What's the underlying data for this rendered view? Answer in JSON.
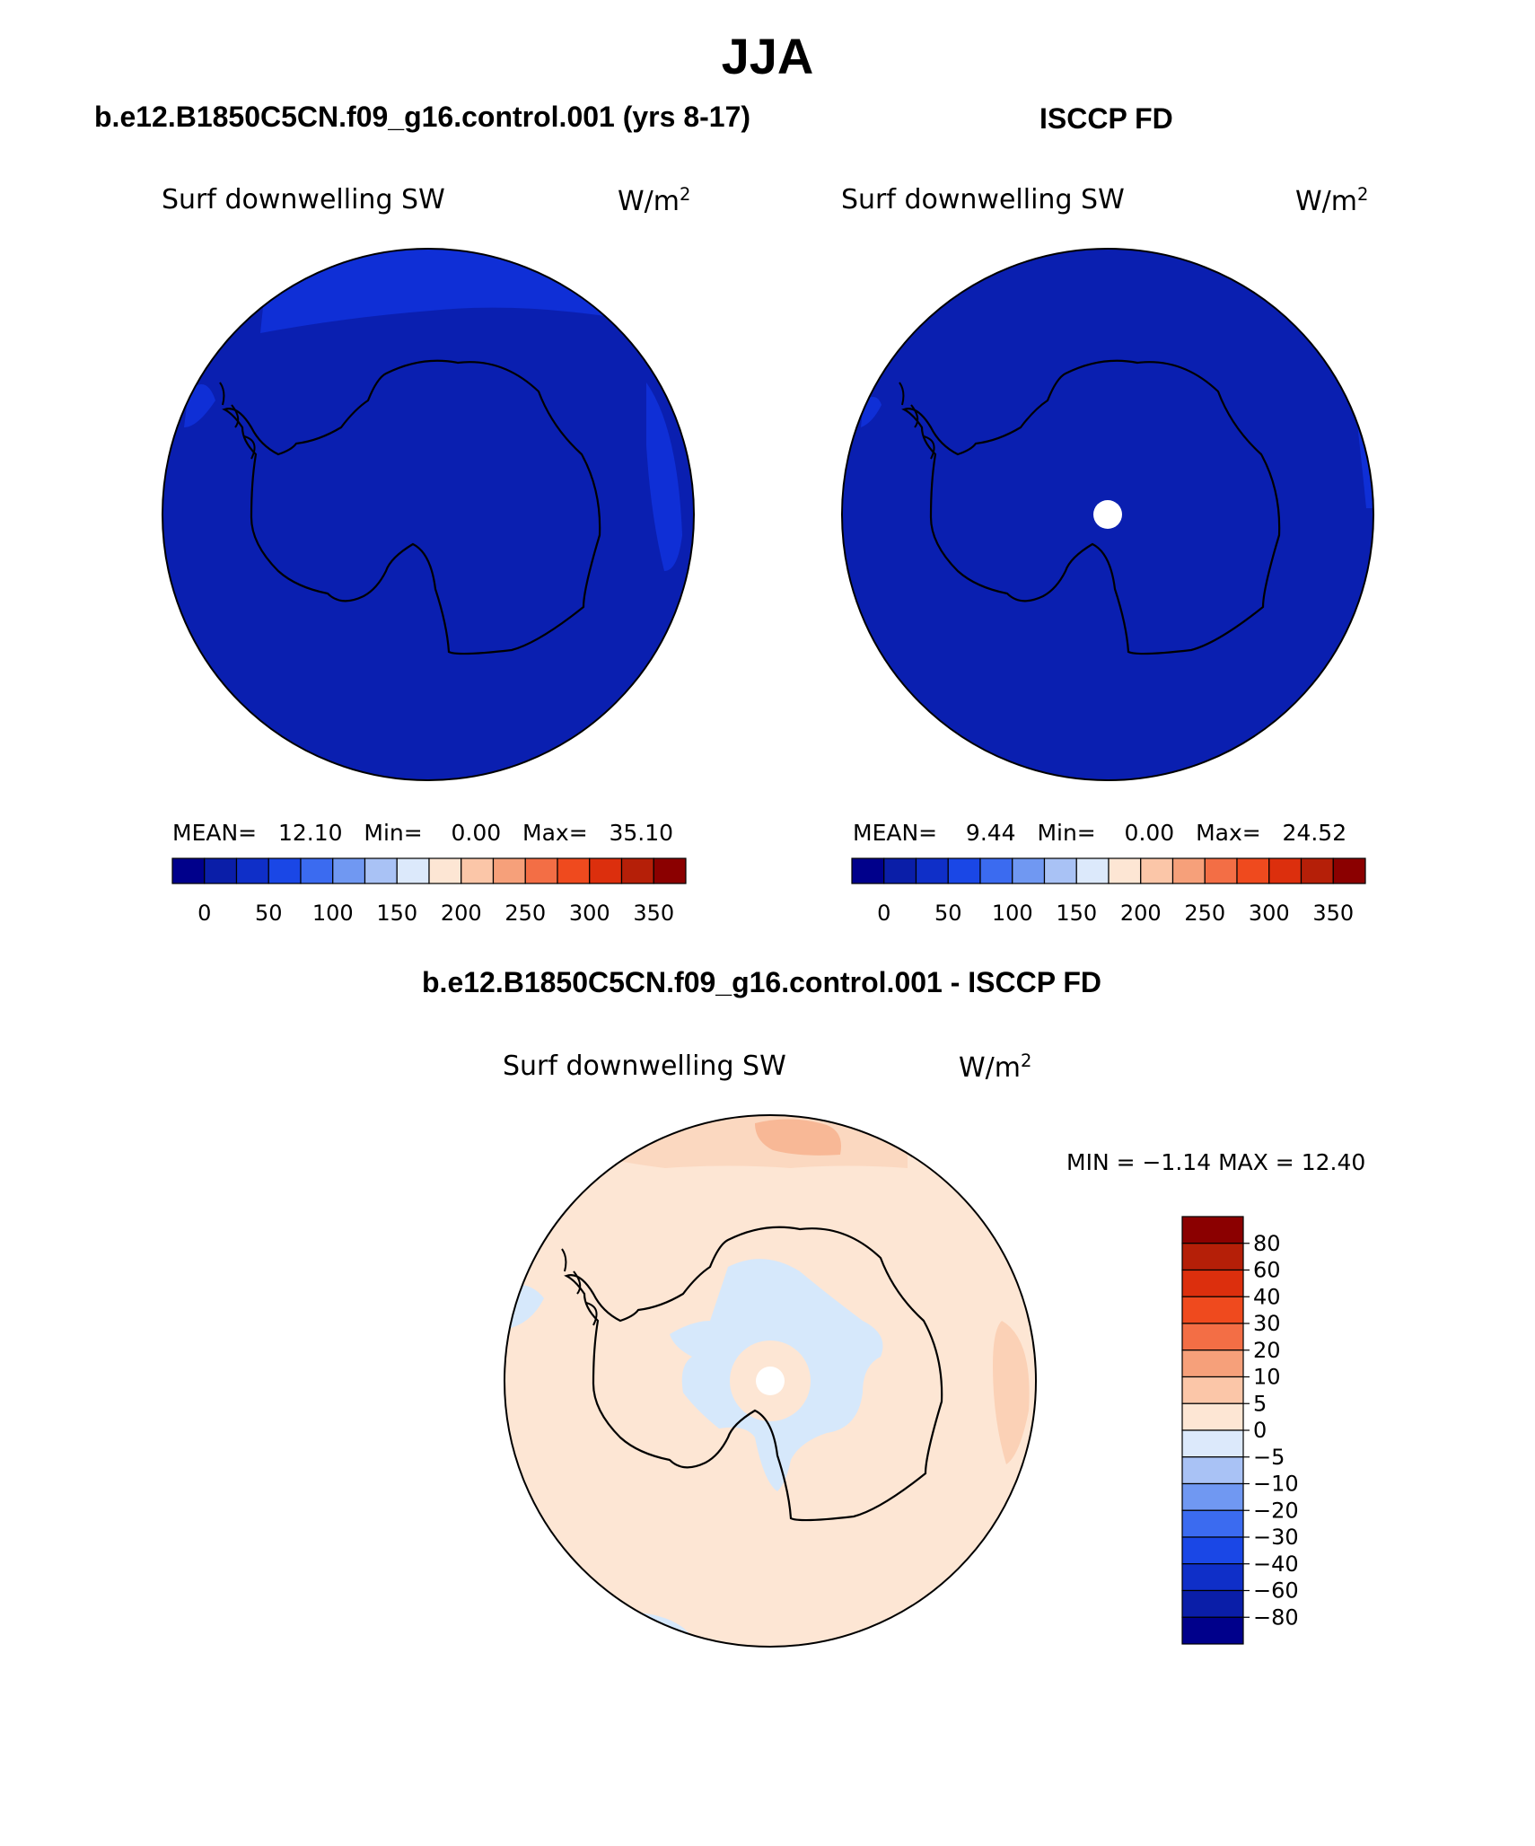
{
  "title": "JJA",
  "panels": {
    "model": {
      "title": "b.e12.B1850C5CN.f09_g16.control.001 (yrs 8-17)",
      "variable": "Surf downwelling SW",
      "units_base": "W/m",
      "units_exp": "2",
      "stats": {
        "mean_label": "MEAN=",
        "mean": "12.10",
        "min_label": "Min=",
        "min": "0.00",
        "max_label": "Max=",
        "max": "35.10"
      }
    },
    "obs": {
      "title": "ISCCP FD",
      "variable": "Surf downwelling SW",
      "units_base": "W/m",
      "units_exp": "2",
      "stats": {
        "mean_label": "MEAN=",
        "mean": "9.44",
        "min_label": "Min=",
        "min": "0.00",
        "max_label": "Max=",
        "max": "24.52"
      }
    },
    "diff": {
      "title": "b.e12.B1850C5CN.f09_g16.control.001 - ISCCP FD",
      "variable": "Surf downwelling SW",
      "units_base": "W/m",
      "units_exp": "2",
      "min_text": "MIN =  −1.14",
      "max_text": "MAX =   12.40"
    }
  },
  "colorbar_main": {
    "colors": [
      "#00008b",
      "#0a1ea8",
      "#0f2fc8",
      "#1a47e6",
      "#3b6bf0",
      "#7098f2",
      "#a9c2f5",
      "#dce9fb",
      "#fde6d4",
      "#fbc6a8",
      "#f6a07a",
      "#f36e45",
      "#ef4a1e",
      "#dc2f0d",
      "#b51f08",
      "#8b0000"
    ],
    "labels": [
      "0",
      "50",
      "100",
      "150",
      "200",
      "250",
      "300",
      "350"
    ]
  },
  "colorbar_diff": {
    "colors": [
      "#8b0000",
      "#b51f08",
      "#dc2f0d",
      "#ef4a1e",
      "#f36e45",
      "#f6a07a",
      "#fbc6a8",
      "#fde6d4",
      "#dce9fb",
      "#a9c2f5",
      "#7098f2",
      "#3b6bf0",
      "#1a47e6",
      "#0f2fc8",
      "#0a1ea8",
      "#00008b"
    ],
    "labels": [
      "80",
      "60",
      "40",
      "30",
      "20",
      "10",
      "5",
      "0",
      "−5",
      "−10",
      "−20",
      "−30",
      "−40",
      "−60",
      "−80"
    ]
  },
  "map_colors": {
    "ocean_dark": "#0a1fb0",
    "ocean_light": "#0f2fd6",
    "diff_pos_low": "#fde6d4",
    "diff_pos_mid": "#fbc6a8",
    "diff_neg": "#d6e8fb",
    "coast": "#000000",
    "missing": "#ffffff"
  }
}
